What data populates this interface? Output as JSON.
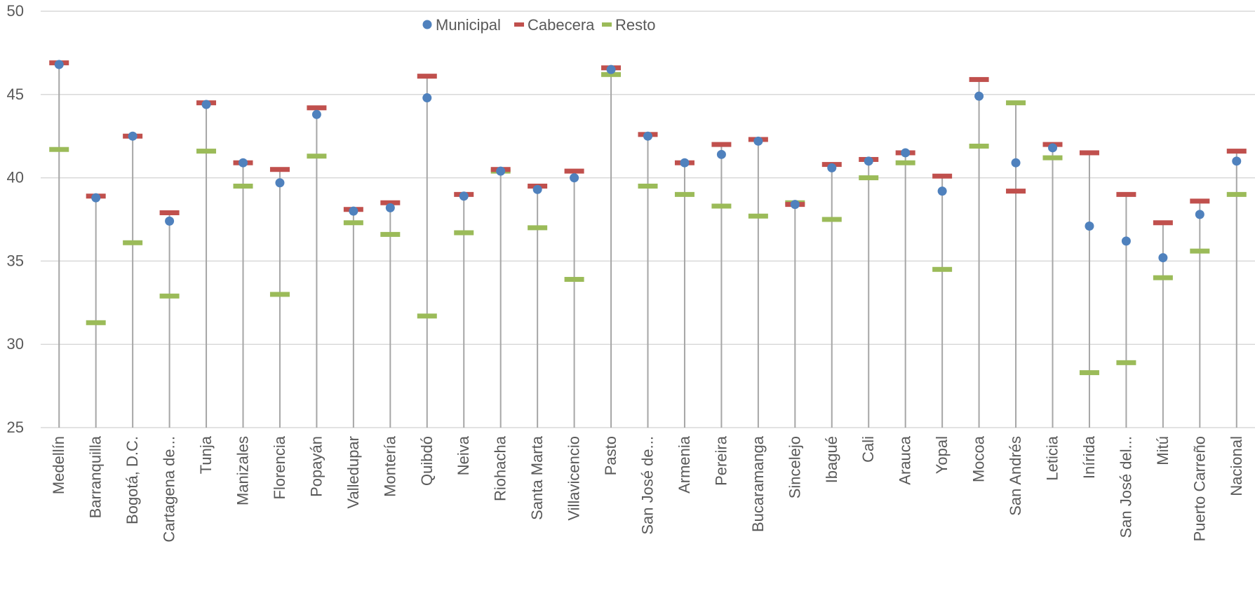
{
  "chart_data": {
    "type": "scatter",
    "title": "",
    "xlabel": "",
    "ylabel": "",
    "ylim": [
      25,
      50
    ],
    "yticks": [
      25,
      30,
      35,
      40,
      45,
      50
    ],
    "grid": true,
    "legend_position": "top-center",
    "categories": [
      "Medellín",
      "Barranquilla",
      "Bogotá, D.C.",
      "Cartagena de...",
      "Tunja",
      "Manizales",
      "Florencia",
      "Popayán",
      "Valledupar",
      "Montería",
      "Quibdó",
      "Neiva",
      "Riohacha",
      "Santa Marta",
      "Villavicencio",
      "Pasto",
      "San José de...",
      "Armenia",
      "Pereira",
      "Bucaramanga",
      "Sincelejo",
      "Ibagué",
      "Cali",
      "Arauca",
      "Yopal",
      "Mocoa",
      "San Andrés",
      "Leticia",
      "Inírida",
      "San José del...",
      "Mitú",
      "Puerto Carreño",
      "Nacional"
    ],
    "series": [
      {
        "name": "Municipal",
        "marker": "circle",
        "color": "#4F81BD",
        "values": [
          46.8,
          38.8,
          42.5,
          37.4,
          44.4,
          40.9,
          39.7,
          43.8,
          38.0,
          38.2,
          44.8,
          38.9,
          40.4,
          39.3,
          40.0,
          46.5,
          42.5,
          40.9,
          41.4,
          42.2,
          38.4,
          40.6,
          41.0,
          41.5,
          39.2,
          44.9,
          40.9,
          41.8,
          37.1,
          36.2,
          35.2,
          37.8,
          41.0
        ]
      },
      {
        "name": "Cabecera",
        "marker": "dash",
        "color": "#C0504D",
        "values": [
          46.9,
          38.9,
          42.5,
          37.9,
          44.5,
          40.9,
          40.5,
          44.2,
          38.1,
          38.5,
          46.1,
          39.0,
          40.5,
          39.5,
          40.4,
          46.6,
          42.6,
          40.9,
          42.0,
          42.3,
          38.4,
          40.8,
          41.1,
          41.5,
          40.1,
          45.9,
          39.2,
          42.0,
          41.5,
          39.0,
          37.3,
          38.6,
          41.6
        ]
      },
      {
        "name": "Resto",
        "marker": "dash",
        "color": "#9BBB59",
        "values": [
          41.7,
          31.3,
          36.1,
          32.9,
          41.6,
          39.5,
          33.0,
          41.3,
          37.3,
          36.6,
          31.7,
          36.7,
          40.4,
          37.0,
          33.9,
          46.2,
          39.5,
          39.0,
          38.3,
          37.7,
          38.5,
          37.5,
          40.0,
          40.9,
          34.5,
          41.9,
          44.5,
          41.2,
          28.3,
          28.9,
          34.0,
          35.6,
          39.0
        ]
      }
    ]
  }
}
